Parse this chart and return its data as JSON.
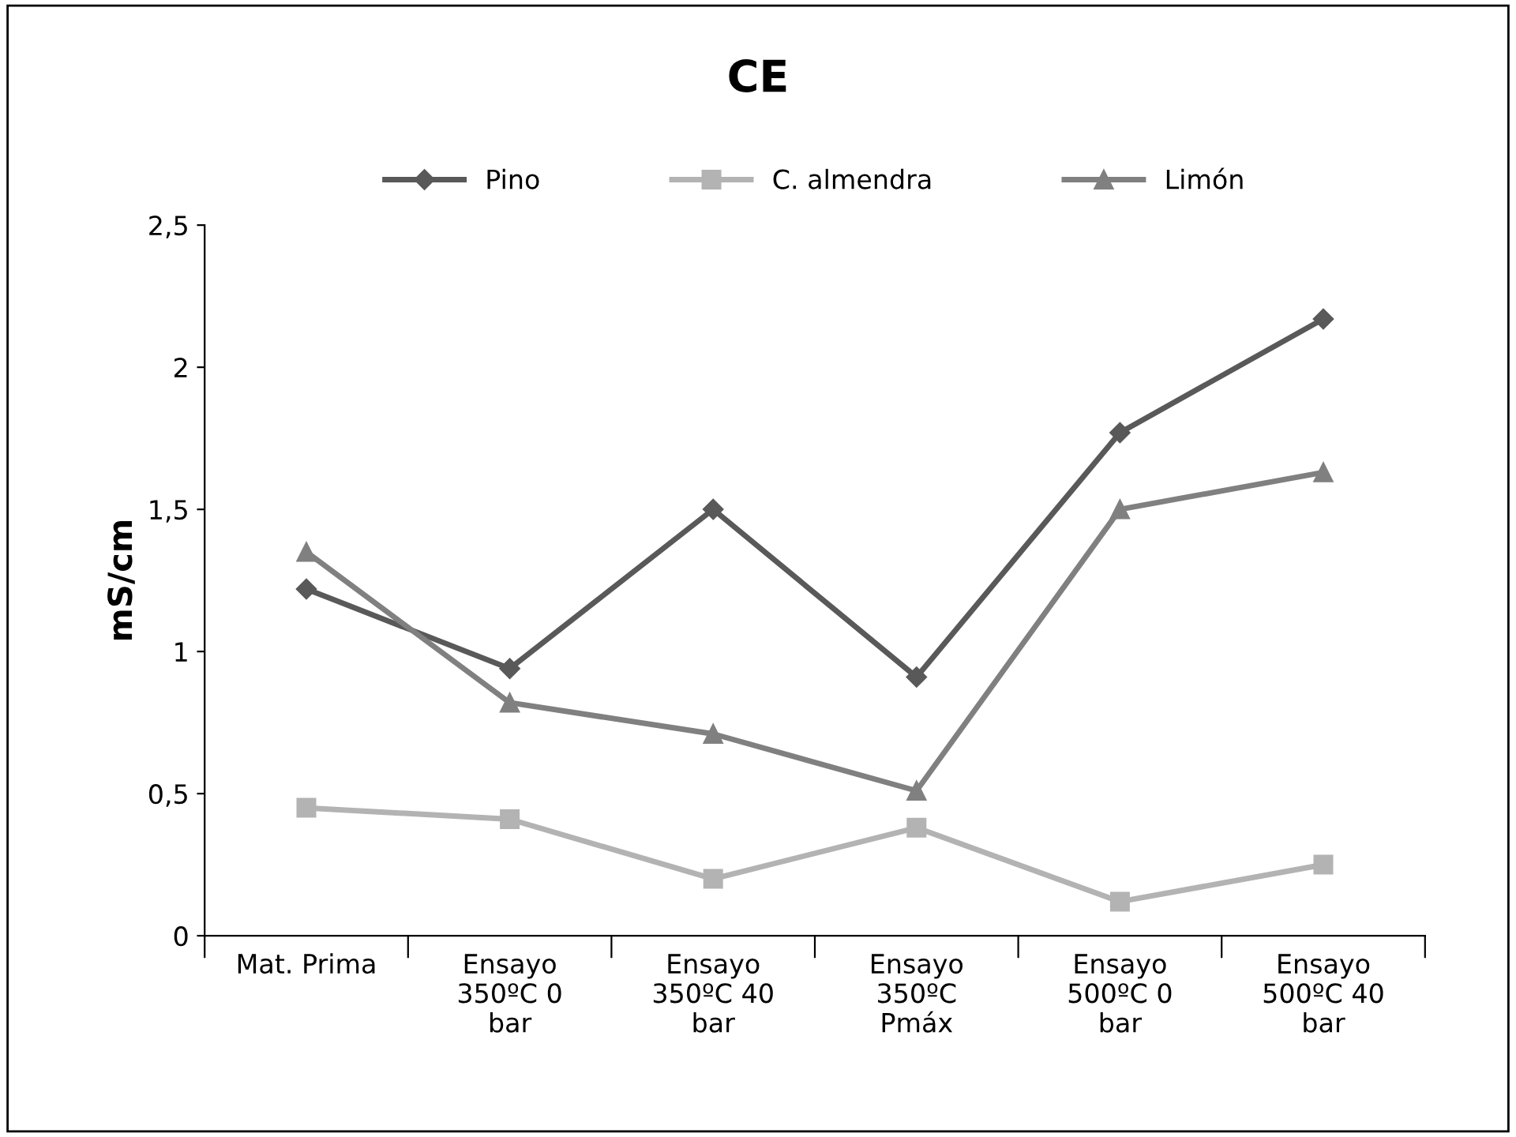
{
  "chart_data": {
    "type": "line",
    "title": "CE",
    "ylabel": "mS/cm",
    "categories": [
      "Mat. Prima",
      "Ensayo\n350ºC 0\nbar",
      "Ensayo\n350ºC 40\nbar",
      "Ensayo\n350ºC\nPmáx",
      "Ensayo\n500ºC 0\nbar",
      "Ensayo\n500ºC 40\nbar"
    ],
    "series": [
      {
        "name": "Pino",
        "color": "#595959",
        "marker": "diamond",
        "values": [
          1.22,
          0.94,
          1.5,
          0.91,
          1.77,
          2.17
        ]
      },
      {
        "name": "C. almendra",
        "color": "#b3b3b3",
        "marker": "square",
        "values": [
          0.45,
          0.41,
          0.2,
          0.38,
          0.12,
          0.25
        ]
      },
      {
        "name": "Limón",
        "color": "#808080",
        "marker": "triangle",
        "values": [
          1.35,
          0.82,
          0.71,
          0.51,
          1.5,
          1.63
        ]
      }
    ],
    "ylim": [
      0,
      2.5
    ],
    "yticks": [
      0,
      {
        "value": 0.5,
        "label": "0,5"
      },
      1,
      {
        "value": 1.5,
        "label": "1,5"
      },
      2,
      {
        "value": 2.5,
        "label": "2,5"
      }
    ],
    "grid": false,
    "legend": "top"
  }
}
